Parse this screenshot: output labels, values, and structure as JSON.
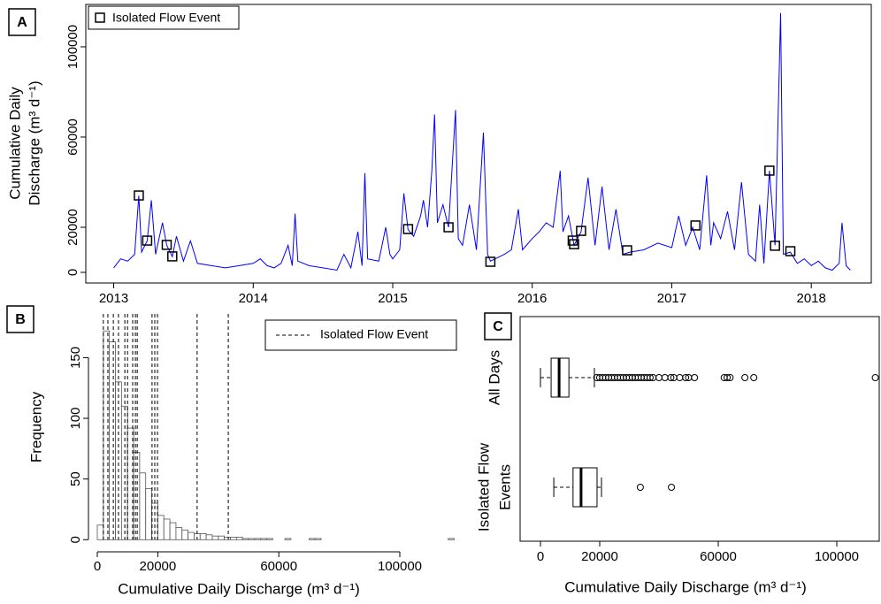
{
  "chart_data": [
    {
      "type": "line",
      "panel_label": "A",
      "ylabel_lines": [
        "Cumulative Daily",
        "Discharge  (m³ d⁻¹)"
      ],
      "color": "#0000ff",
      "x": [
        2013.0,
        2013.05,
        2013.1,
        2013.15,
        2013.18,
        2013.2,
        2013.24,
        2013.27,
        2013.3,
        2013.35,
        2013.38,
        2013.42,
        2013.45,
        2013.5,
        2013.55,
        2013.6,
        2013.7,
        2013.8,
        2013.9,
        2014.0,
        2014.05,
        2014.1,
        2014.15,
        2014.2,
        2014.25,
        2014.28,
        2014.3,
        2014.32,
        2014.4,
        2014.5,
        2014.6,
        2014.65,
        2014.7,
        2014.75,
        2014.78,
        2014.8,
        2014.82,
        2014.9,
        2014.95,
        2014.98,
        2015.0,
        2015.05,
        2015.08,
        2015.11,
        2015.15,
        2015.2,
        2015.22,
        2015.25,
        2015.28,
        2015.3,
        2015.32,
        2015.36,
        2015.4,
        2015.45,
        2015.47,
        2015.5,
        2015.55,
        2015.6,
        2015.65,
        2015.68,
        2015.7,
        2015.8,
        2015.85,
        2015.9,
        2015.93,
        2016.0,
        2016.05,
        2016.1,
        2016.15,
        2016.2,
        2016.22,
        2016.26,
        2016.3,
        2016.35,
        2016.4,
        2016.45,
        2016.5,
        2016.55,
        2016.6,
        2016.65,
        2016.7,
        2016.8,
        2016.9,
        2017.0,
        2017.05,
        2017.1,
        2017.15,
        2017.2,
        2017.25,
        2017.28,
        2017.3,
        2017.35,
        2017.4,
        2017.45,
        2017.5,
        2017.55,
        2017.6,
        2017.63,
        2017.66,
        2017.7,
        2017.74,
        2017.78,
        2017.8,
        2017.85,
        2017.9,
        2017.95,
        2018.0,
        2018.05,
        2018.1,
        2018.15,
        2018.2,
        2018.22,
        2018.25,
        2018.28
      ],
      "y": [
        2000,
        6000,
        5000,
        8000,
        34000,
        9000,
        14000,
        32000,
        8000,
        22000,
        12000,
        7000,
        16000,
        5000,
        14000,
        4000,
        3000,
        2000,
        3000,
        4000,
        6000,
        3000,
        2000,
        4000,
        12000,
        3000,
        26000,
        5000,
        3000,
        2000,
        1000,
        8000,
        2000,
        18000,
        3000,
        44000,
        6000,
        5000,
        20000,
        8000,
        6000,
        10000,
        35000,
        19000,
        16000,
        25000,
        32000,
        20000,
        45000,
        70000,
        22000,
        30000,
        20000,
        72000,
        15000,
        12000,
        30000,
        10000,
        62000,
        8000,
        5000,
        8000,
        10000,
        28000,
        10000,
        15000,
        18000,
        22000,
        20000,
        45000,
        18000,
        25000,
        12000,
        18000,
        42000,
        12000,
        38000,
        10000,
        28000,
        8000,
        9000,
        10000,
        13000,
        11000,
        25000,
        12000,
        20000,
        10000,
        43000,
        12000,
        22000,
        15000,
        27000,
        10000,
        40000,
        8000,
        5000,
        30000,
        4000,
        45000,
        12000,
        115000,
        8000,
        9000,
        4000,
        6000,
        3000,
        5000,
        2000,
        1000,
        4000,
        22000,
        3000,
        1000
      ],
      "events": {
        "name": "Isolated Flow Event",
        "x": [
          2013.18,
          2013.24,
          2013.38,
          2013.42,
          2015.11,
          2015.4,
          2015.7,
          2016.29,
          2016.3,
          2016.35,
          2016.68,
          2017.17,
          2017.7,
          2017.74,
          2017.85
        ],
        "y": [
          34100,
          14100,
          12200,
          7100,
          19200,
          20000,
          4700,
          14100,
          12500,
          18400,
          9800,
          20800,
          45100,
          11800,
          9400
        ]
      },
      "xlim": [
        2012.8,
        2018.43
      ],
      "xticks": [
        2013,
        2014,
        2015,
        2016,
        2017,
        2018
      ],
      "ylim": [
        -4700,
        118800
      ],
      "yticks": [
        0,
        20000,
        60000,
        100000
      ]
    },
    {
      "type": "histogram",
      "panel_label": "B",
      "xlabel": "Cumulative Daily Discharge  (m³  d⁻¹)",
      "ylabel": "Frequency",
      "bins": [
        0,
        2000,
        4000,
        6000,
        8000,
        10000,
        12000,
        14000,
        16000,
        18000,
        20000,
        22000,
        24000,
        26000,
        28000,
        30000,
        32000,
        34000,
        36000,
        38000,
        40000,
        42000,
        44000,
        46000,
        48000,
        50000,
        52000,
        54000,
        56000,
        58000,
        60000,
        62000,
        64000,
        66000,
        68000,
        70000,
        72000,
        74000,
        76000,
        78000,
        80000,
        82000,
        84000,
        86000,
        88000,
        90000,
        92000,
        94000,
        96000,
        98000,
        100000,
        102000,
        104000,
        106000,
        108000,
        110000,
        112000,
        114000,
        116000,
        118000,
        120000
      ],
      "counts": [
        12,
        172,
        163,
        130,
        110,
        92,
        72,
        55,
        42,
        30,
        20,
        17,
        14,
        10,
        8,
        6,
        5,
        5,
        4,
        3,
        3,
        2,
        2,
        2,
        1,
        1,
        1,
        1,
        1,
        0,
        0,
        1,
        0,
        0,
        0,
        1,
        1,
        0,
        0,
        0,
        0,
        0,
        0,
        0,
        0,
        0,
        0,
        0,
        0,
        0,
        0,
        0,
        0,
        0,
        0,
        0,
        0,
        0,
        1,
        0
      ],
      "event_lines": {
        "name": "Isolated Flow Event",
        "values": [
          2000,
          3500,
          5300,
          7000,
          9100,
          10000,
          11700,
          12600,
          13200,
          18100,
          19000,
          19900,
          33000,
          43300
        ]
      },
      "xlim": [
        -2924,
        112573
      ],
      "xticks": [
        0,
        20000,
        60000,
        100000
      ],
      "ylim": [
        -10,
        186
      ],
      "yticks": [
        0,
        50,
        100,
        150
      ]
    },
    {
      "type": "boxplot",
      "panel_label": "C",
      "xlabel": "Cumulative Daily Discharge  (m³  d⁻¹)",
      "categories": [
        [
          "All Days"
        ],
        [
          "Isolated Flow",
          "Events"
        ]
      ],
      "boxes": [
        {
          "whisker_low": 0,
          "q1": 3600,
          "median": 6300,
          "q3": 9600,
          "whisker_high": 18200,
          "outliers": [
            19000,
            20000,
            21000,
            22000,
            23000,
            24000,
            25000,
            26000,
            27000,
            28000,
            29000,
            30000,
            31000,
            32000,
            33000,
            34000,
            35000,
            36000,
            37000,
            38000,
            40000,
            42000,
            44000,
            45000,
            47000,
            49000,
            50000,
            52000,
            62000,
            63000,
            64000,
            69000,
            72000,
            113000
          ]
        },
        {
          "whisker_low": 4500,
          "q1": 11000,
          "median": 13700,
          "q3": 19100,
          "whisker_high": 20600,
          "outliers": [
            33700,
            44200
          ]
        }
      ],
      "xlim": [
        -6866,
        114328
      ],
      "xticks": [
        0,
        20000,
        60000,
        100000
      ]
    }
  ]
}
